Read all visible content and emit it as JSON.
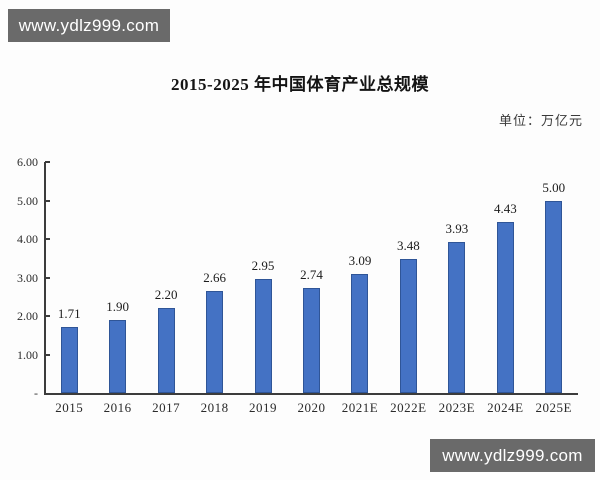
{
  "watermark": {
    "text": "www.ydlz999.com"
  },
  "chart_data": {
    "type": "bar",
    "title": "2015-2025 年中国体育产业总规模",
    "unit_label": "单位：万亿元",
    "categories": [
      "2015",
      "2016",
      "2017",
      "2018",
      "2019",
      "2020",
      "2021E",
      "2022E",
      "2023E",
      "2024E",
      "2025E"
    ],
    "values": [
      1.71,
      1.9,
      2.2,
      2.66,
      2.95,
      2.74,
      3.09,
      3.48,
      3.93,
      4.43,
      5.0
    ],
    "value_labels": [
      "1.71",
      "1.90",
      "2.20",
      "2.66",
      "2.95",
      "2.74",
      "3.09",
      "3.48",
      "3.93",
      "4.43",
      "5.00"
    ],
    "xlabel": "",
    "ylabel": "",
    "ylim": [
      0,
      6
    ],
    "y_tick_values": [
      6,
      5,
      4,
      3,
      2,
      1,
      0
    ],
    "y_tick_labels": [
      "6.00",
      "5.00",
      "4.00",
      "3.00",
      "2.00",
      "1.00",
      "-"
    ],
    "grid": false,
    "legend": "none",
    "bar_color": "#4472C4",
    "bar_border_color": "#2F5597",
    "axis_color": "#3c3c3c"
  }
}
